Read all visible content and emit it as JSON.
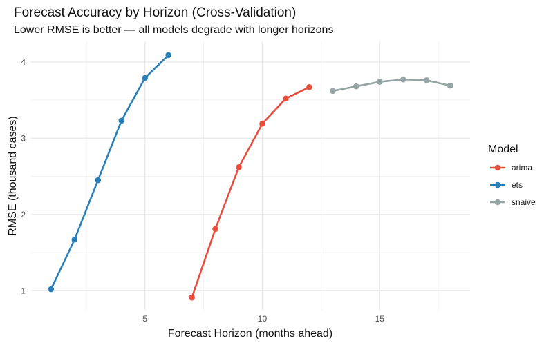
{
  "chart_data": {
    "type": "line",
    "title": "Forecast Accuracy by Horizon (Cross-Validation)",
    "subtitle": "Lower RMSE is better — all models degrade with longer horizons",
    "xlabel": "Forecast Horizon (months ahead)",
    "ylabel": "RMSE (thousand cases)",
    "xlim": [
      0.15,
      18.85
    ],
    "ylim": [
      0.74,
      4.27
    ],
    "xticks": [
      5,
      10,
      15
    ],
    "yticks": [
      1,
      2,
      3,
      4
    ],
    "grid": true,
    "legend": {
      "title": "Model",
      "position": "right"
    },
    "series": [
      {
        "name": "arima",
        "color": "#E74C3C",
        "x": [
          7,
          8,
          9,
          10,
          11,
          12
        ],
        "y": [
          0.91,
          1.81,
          2.62,
          3.19,
          3.52,
          3.67
        ]
      },
      {
        "name": "ets",
        "color": "#2980B9",
        "x": [
          1,
          2,
          3,
          4,
          5,
          6
        ],
        "y": [
          1.02,
          1.67,
          2.45,
          3.23,
          3.79,
          4.09
        ]
      },
      {
        "name": "snaive",
        "color": "#95A5A6",
        "x": [
          13,
          14,
          15,
          16,
          17,
          18
        ],
        "y": [
          3.62,
          3.68,
          3.74,
          3.77,
          3.76,
          3.69
        ]
      }
    ]
  }
}
